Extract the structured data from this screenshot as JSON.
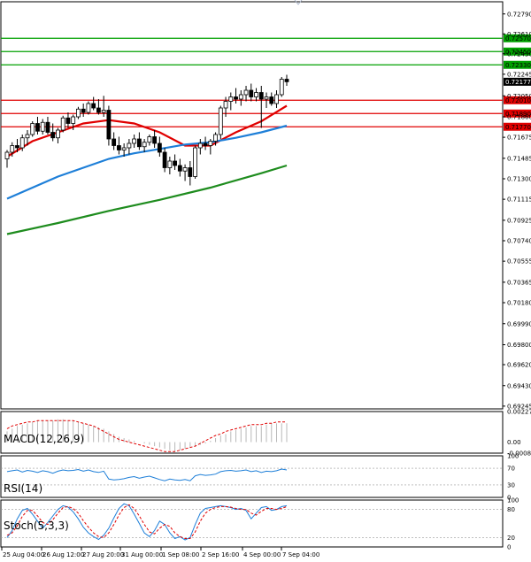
{
  "chart_data": [
    {
      "type": "candlestick",
      "panel": "price",
      "y_ticks": [
        "0.72790",
        "0.72610",
        "0.72430",
        "0.72245",
        "0.72050",
        "0.71860",
        "0.71675",
        "0.71485",
        "0.71300",
        "0.71115",
        "0.70925",
        "0.70740",
        "0.70555",
        "0.70365",
        "0.70180",
        "0.69990",
        "0.69800",
        "0.69620",
        "0.69430",
        "0.69245"
      ],
      "ylim": [
        0.6922,
        0.729
      ],
      "levels": [
        {
          "value": 0.7257,
          "label": "0.72570",
          "color": "#00a000"
        },
        {
          "value": 0.7245,
          "label": "0.72450",
          "color": "#00a000"
        },
        {
          "value": 0.7233,
          "label": "0.72330",
          "color": "#00a000"
        },
        {
          "value": 0.7201,
          "label": "0.72010",
          "color": "#e00000"
        },
        {
          "value": 0.7189,
          "label": "0.71890",
          "color": "#e00000"
        },
        {
          "value": 0.7177,
          "label": "0.71770",
          "color": "#e00000"
        }
      ],
      "current_price": {
        "value": 0.72177,
        "label": "0.72177"
      },
      "candles": [
        [
          0.7148,
          0.7156,
          0.714,
          0.7154
        ],
        [
          0.7154,
          0.7163,
          0.715,
          0.716
        ],
        [
          0.716,
          0.7166,
          0.7154,
          0.7158
        ],
        [
          0.7158,
          0.717,
          0.7155,
          0.7167
        ],
        [
          0.7167,
          0.7174,
          0.716,
          0.717
        ],
        [
          0.717,
          0.7182,
          0.7168,
          0.718
        ],
        [
          0.718,
          0.7186,
          0.717,
          0.7173
        ],
        [
          0.7173,
          0.7184,
          0.717,
          0.7181
        ],
        [
          0.7181,
          0.7186,
          0.717,
          0.7172
        ],
        [
          0.7172,
          0.718,
          0.7164,
          0.7167
        ],
        [
          0.7167,
          0.7176,
          0.7162,
          0.7174
        ],
        [
          0.7174,
          0.7187,
          0.7172,
          0.7185
        ],
        [
          0.7185,
          0.719,
          0.7176,
          0.718
        ],
        [
          0.718,
          0.7188,
          0.7174,
          0.7186
        ],
        [
          0.7186,
          0.7195,
          0.7184,
          0.7193
        ],
        [
          0.7193,
          0.7198,
          0.7186,
          0.719
        ],
        [
          0.719,
          0.72,
          0.7188,
          0.7198
        ],
        [
          0.7198,
          0.7204,
          0.7192,
          0.7194
        ],
        [
          0.7194,
          0.7202,
          0.7188,
          0.719
        ],
        [
          0.719,
          0.7205,
          0.7186,
          0.7192
        ],
        [
          0.7192,
          0.7196,
          0.716,
          0.7166
        ],
        [
          0.7166,
          0.7172,
          0.7156,
          0.716
        ],
        [
          0.716,
          0.7168,
          0.7152,
          0.7156
        ],
        [
          0.7156,
          0.7162,
          0.715,
          0.7158
        ],
        [
          0.7158,
          0.7166,
          0.7152,
          0.7162
        ],
        [
          0.7162,
          0.717,
          0.7158,
          0.7166
        ],
        [
          0.7166,
          0.7172,
          0.7156,
          0.7159
        ],
        [
          0.7159,
          0.7166,
          0.7154,
          0.7163
        ],
        [
          0.7163,
          0.717,
          0.716,
          0.7168
        ],
        [
          0.7168,
          0.7174,
          0.7158,
          0.7162
        ],
        [
          0.7162,
          0.7168,
          0.715,
          0.7154
        ],
        [
          0.7154,
          0.7158,
          0.7136,
          0.714
        ],
        [
          0.714,
          0.715,
          0.7134,
          0.7146
        ],
        [
          0.7146,
          0.7152,
          0.7138,
          0.7142
        ],
        [
          0.7142,
          0.7148,
          0.7132,
          0.7137
        ],
        [
          0.7137,
          0.7143,
          0.7128,
          0.714
        ],
        [
          0.714,
          0.7146,
          0.7124,
          0.7132
        ],
        [
          0.7132,
          0.716,
          0.713,
          0.7158
        ],
        [
          0.7158,
          0.7166,
          0.7152,
          0.7162
        ],
        [
          0.7162,
          0.7168,
          0.7156,
          0.716
        ],
        [
          0.716,
          0.7166,
          0.7152,
          0.7164
        ],
        [
          0.7164,
          0.7172,
          0.716,
          0.717
        ],
        [
          0.717,
          0.7196,
          0.7166,
          0.7194
        ],
        [
          0.7194,
          0.7204,
          0.7186,
          0.72
        ],
        [
          0.72,
          0.7208,
          0.7192,
          0.7204
        ],
        [
          0.7204,
          0.7212,
          0.7198,
          0.7202
        ],
        [
          0.7202,
          0.721,
          0.7196,
          0.7206
        ],
        [
          0.7206,
          0.7214,
          0.72,
          0.721
        ],
        [
          0.721,
          0.7216,
          0.72,
          0.7204
        ],
        [
          0.7204,
          0.7212,
          0.72,
          0.7208
        ],
        [
          0.7208,
          0.7214,
          0.7176,
          0.7202
        ],
        [
          0.7202,
          0.7208,
          0.7194,
          0.7204
        ],
        [
          0.7204,
          0.7208,
          0.7196,
          0.7198
        ],
        [
          0.7198,
          0.721,
          0.7194,
          0.7206
        ],
        [
          0.7206,
          0.7222,
          0.7204,
          0.722
        ],
        [
          0.722,
          0.7224,
          0.7214,
          0.72177
        ]
      ],
      "moving_averages": [
        {
          "color": "#e00000",
          "values": [
            [
              0,
              0.715
            ],
            [
              5,
              0.7164
            ],
            [
              10,
              0.7172
            ],
            [
              15,
              0.718
            ],
            [
              20,
              0.7183
            ],
            [
              25,
              0.718
            ],
            [
              30,
              0.7172
            ],
            [
              35,
              0.716
            ],
            [
              40,
              0.716
            ],
            [
              45,
              0.7172
            ],
            [
              50,
              0.7182
            ],
            [
              55,
              0.7196
            ]
          ]
        },
        {
          "color": "#1e7fd8",
          "values": [
            [
              0,
              0.7112
            ],
            [
              5,
              0.7122
            ],
            [
              10,
              0.7132
            ],
            [
              15,
              0.714
            ],
            [
              20,
              0.7148
            ],
            [
              25,
              0.7153
            ],
            [
              30,
              0.7157
            ],
            [
              35,
              0.7161
            ],
            [
              40,
              0.7163
            ],
            [
              45,
              0.7167
            ],
            [
              50,
              0.7172
            ],
            [
              55,
              0.7178
            ]
          ]
        },
        {
          "color": "#1e8c1e",
          "values": [
            [
              0,
              0.708
            ],
            [
              10,
              0.709
            ],
            [
              20,
              0.7101
            ],
            [
              30,
              0.7111
            ],
            [
              40,
              0.7122
            ],
            [
              50,
              0.7135
            ],
            [
              55,
              0.7142
            ]
          ]
        }
      ]
    },
    {
      "type": "histogram",
      "panel": "macd",
      "label": "MACD(12,26,9)",
      "y_ticks": [
        "0.002276",
        "0.00",
        "-0.00082"
      ],
      "ylim": [
        -0.00082,
        0.002276
      ],
      "values": [
        0.0008,
        0.001,
        0.0012,
        0.0013,
        0.0014,
        0.0015,
        0.0016,
        0.0016,
        0.0016,
        0.0016,
        0.0017,
        0.0017,
        0.0016,
        0.0016,
        0.0015,
        0.0014,
        0.0013,
        0.0012,
        0.0011,
        0.001,
        0.0008,
        0.0006,
        0.0004,
        0.0003,
        0.0002,
        0.0001,
        0.0,
        -0.0001,
        -0.0002,
        -0.0003,
        -0.0004,
        -0.0005,
        -0.0006,
        -0.0007,
        -0.0006,
        -0.0005,
        -0.0004,
        -0.0003,
        -0.0002,
        -0.0001,
        0.0001,
        0.0003,
        0.0005,
        0.0006,
        0.0008,
        0.0009,
        0.001,
        0.0011,
        0.0012,
        0.0012,
        0.0012,
        0.0013,
        0.0014,
        0.0014,
        0.0014,
        0.0014
      ],
      "signal": [
        0.001,
        0.0012,
        0.0013,
        0.0014,
        0.0015,
        0.0015,
        0.0016,
        0.0016,
        0.0016,
        0.0016,
        0.0016,
        0.0016,
        0.0016,
        0.0016,
        0.0015,
        0.0014,
        0.0013,
        0.0012,
        0.001,
        0.0008,
        0.0006,
        0.0004,
        0.0002,
        0.0001,
        0.0,
        -0.0001,
        -0.0002,
        -0.0003,
        -0.0004,
        -0.0005,
        -0.0006,
        -0.0007,
        -0.0007,
        -0.0007,
        -0.0006,
        -0.0005,
        -0.0004,
        -0.0003,
        -0.0001,
        0.0001,
        0.0003,
        0.0005,
        0.0006,
        0.0008,
        0.0009,
        0.001,
        0.0011,
        0.0012,
        0.0013,
        0.0013,
        0.0013,
        0.0014,
        0.0014,
        0.0015,
        0.0015,
        0.0015
      ],
      "signal_color": "#e00000"
    },
    {
      "type": "line",
      "panel": "rsi",
      "label": "RSI(14)",
      "y_ticks": [
        "100",
        "70",
        "30",
        "0"
      ],
      "ylim": [
        0,
        100
      ],
      "values": [
        62,
        64,
        66,
        61,
        65,
        63,
        60,
        64,
        62,
        58,
        63,
        66,
        64,
        65,
        67,
        63,
        66,
        62,
        60,
        63,
        44,
        42,
        43,
        45,
        48,
        50,
        46,
        49,
        51,
        47,
        43,
        40,
        44,
        42,
        41,
        43,
        40,
        52,
        55,
        53,
        54,
        56,
        62,
        64,
        65,
        63,
        64,
        66,
        62,
        64,
        60,
        63,
        62,
        64,
        68,
        66
      ],
      "color": "#1e7fd8"
    },
    {
      "type": "line",
      "panel": "stoch",
      "label": "Stoch(5,3,3)",
      "y_ticks": [
        "100",
        "80",
        "20",
        "0"
      ],
      "ylim": [
        0,
        100
      ],
      "series": [
        {
          "values": [
            20,
            35,
            60,
            78,
            82,
            70,
            55,
            40,
            52,
            66,
            80,
            88,
            85,
            75,
            60,
            42,
            30,
            22,
            16,
            25,
            40,
            62,
            82,
            92,
            88,
            70,
            50,
            30,
            22,
            35,
            55,
            48,
            30,
            18,
            22,
            15,
            20,
            48,
            72,
            82,
            84,
            86,
            88,
            86,
            84,
            80,
            82,
            78,
            60,
            72,
            84,
            86,
            78,
            80,
            86,
            88
          ],
          "color": "#1e7fd8"
        },
        {
          "values": [
            25,
            30,
            45,
            65,
            78,
            78,
            66,
            52,
            48,
            58,
            72,
            84,
            86,
            82,
            72,
            56,
            42,
            30,
            22,
            20,
            30,
            48,
            68,
            84,
            90,
            82,
            66,
            48,
            32,
            28,
            40,
            48,
            44,
            30,
            22,
            18,
            18,
            32,
            55,
            72,
            80,
            84,
            86,
            86,
            85,
            82,
            80,
            80,
            72,
            68,
            76,
            82,
            82,
            80,
            82,
            86
          ],
          "color": "#e00000"
        }
      ]
    }
  ],
  "time_axis": [
    "25 Aug 04:00",
    "26 Aug 12:00",
    "27 Aug 20:00",
    "31 Aug 00:00",
    "1 Sep 08:00",
    "2 Sep 16:00",
    "4 Sep 00:00",
    "7 Sep 04:00"
  ]
}
